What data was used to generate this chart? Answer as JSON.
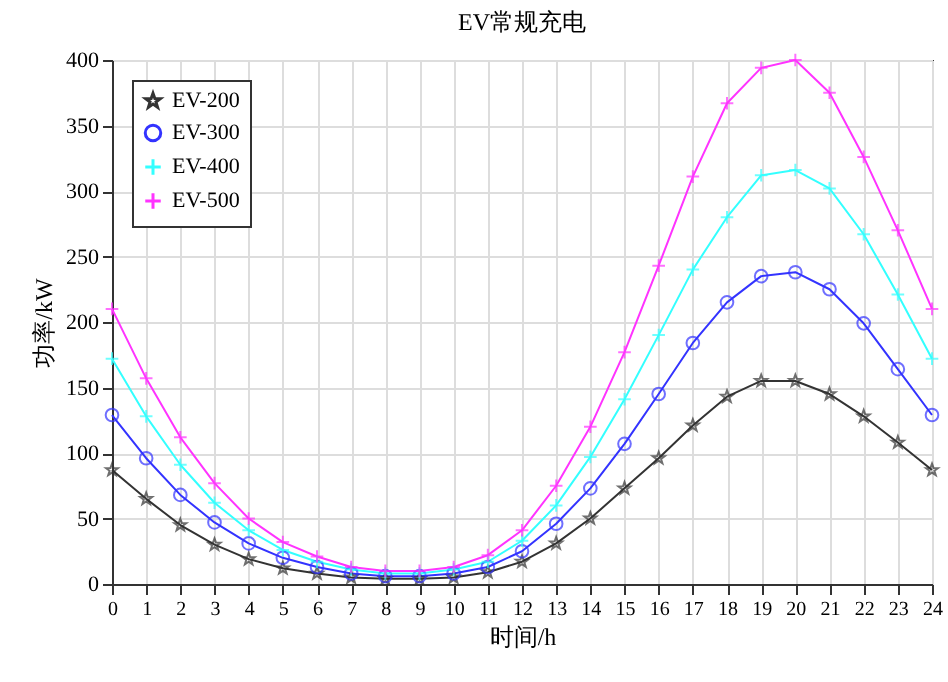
{
  "chart_data": {
    "type": "line",
    "title": "EV常规充电",
    "xlabel": "时间/h",
    "ylabel": "功率/kW",
    "x": [
      0,
      1,
      2,
      3,
      4,
      5,
      6,
      7,
      8,
      9,
      10,
      11,
      12,
      13,
      14,
      15,
      16,
      17,
      18,
      19,
      20,
      21,
      22,
      23,
      24
    ],
    "series": [
      {
        "name": "EV-200",
        "color": "#333333",
        "marker": "star",
        "values": [
          87,
          65,
          45,
          30,
          19,
          12,
          8,
          5,
          4,
          4,
          5,
          9,
          17,
          31,
          50,
          73,
          96,
          121,
          143,
          155,
          155,
          145,
          128,
          108,
          87
        ]
      },
      {
        "name": "EV-300",
        "color": "#3333ff",
        "marker": "circle",
        "values": [
          129,
          96,
          68,
          47,
          31,
          20,
          13,
          8,
          6,
          6,
          8,
          13,
          25,
          46,
          73,
          107,
          145,
          184,
          215,
          235,
          238,
          225,
          199,
          164,
          129
        ]
      },
      {
        "name": "EV-400",
        "color": "#33ffff",
        "marker": "cross",
        "values": [
          172,
          128,
          91,
          62,
          41,
          26,
          17,
          11,
          8,
          8,
          11,
          17,
          33,
          60,
          97,
          141,
          190,
          240,
          280,
          312,
          316,
          302,
          267,
          221,
          172
        ]
      },
      {
        "name": "EV-500",
        "color": "#ff33ff",
        "marker": "cross",
        "values": [
          210,
          157,
          112,
          77,
          50,
          32,
          21,
          13,
          10,
          10,
          13,
          22,
          41,
          75,
          120,
          177,
          243,
          311,
          367,
          394,
          400,
          375,
          326,
          270,
          210
        ]
      }
    ],
    "xlim": [
      0,
      24
    ],
    "xticks": [
      0,
      1,
      2,
      3,
      4,
      5,
      6,
      7,
      8,
      9,
      10,
      11,
      12,
      13,
      14,
      15,
      16,
      17,
      18,
      19,
      20,
      21,
      22,
      23,
      24
    ],
    "ylim": [
      0,
      400
    ],
    "yticks": [
      0,
      50,
      100,
      150,
      200,
      250,
      300,
      350,
      400
    ],
    "grid": true,
    "legend": "top left",
    "line_style": "solid"
  }
}
